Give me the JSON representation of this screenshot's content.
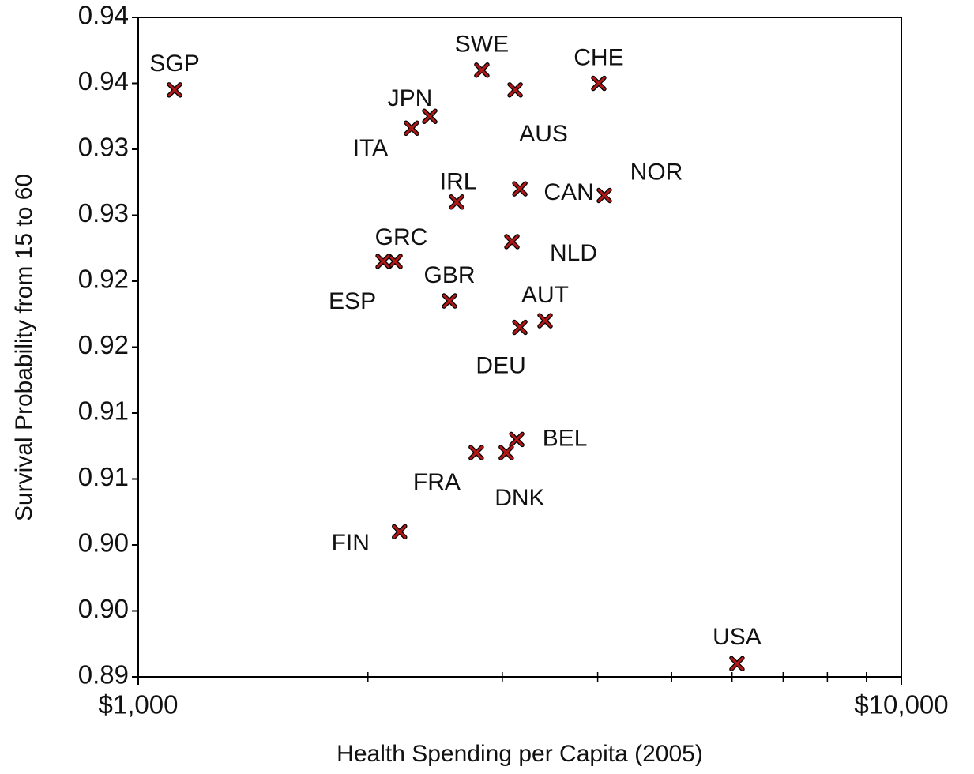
{
  "chart_data": {
    "type": "scatter",
    "x_label": "Health Spending per Capita (2005)",
    "y_label": "Survival Probability from 15 to 60",
    "xscale": "log",
    "xlim": [
      1000,
      10000
    ],
    "xticks": [
      {
        "value": 1000,
        "label": "$1,000"
      },
      {
        "value": 10000,
        "label": "$10,000"
      }
    ],
    "xminorticks": [
      2000,
      3000,
      4000,
      5000,
      6000,
      7000,
      8000,
      9000
    ],
    "ylim": [
      0.89,
      0.94
    ],
    "yticks": [
      0.89,
      {
        "value": 0.895,
        "label": "0.90"
      },
      {
        "value": 0.9,
        "label": "0.90"
      },
      {
        "value": 0.905,
        "label": "0.91"
      },
      0.91,
      {
        "value": 0.915,
        "label": "0.92"
      },
      0.92,
      {
        "value": 0.925,
        "label": "0.93"
      },
      0.93,
      {
        "value": 0.935,
        "label": "0.94"
      },
      0.94
    ],
    "color": "#b01818",
    "labels": [
      "SGP",
      "SWE",
      "AUS",
      "CHE",
      "JPN",
      "ITA",
      "IRL",
      "CAN",
      "NOR",
      "NLD",
      "GRC",
      "ESP",
      "GBR",
      "AUT",
      "DEU",
      "BEL",
      "FRA",
      "DNK",
      "FIN",
      "USA"
    ],
    "x": [
      1116,
      2820,
      3118,
      4013,
      2410,
      2281,
      2614,
      3163,
      4081,
      3088,
      2170,
      2094,
      2558,
      3413,
      3163,
      3133,
      2773,
      3036,
      2200,
      6090
    ],
    "y": [
      0.9345,
      0.936,
      0.9345,
      0.935,
      0.9325,
      0.9316,
      0.926,
      0.927,
      0.9265,
      0.923,
      0.9215,
      0.9215,
      0.9185,
      0.917,
      0.9165,
      0.908,
      0.907,
      0.907,
      0.901,
      0.891
    ]
  }
}
